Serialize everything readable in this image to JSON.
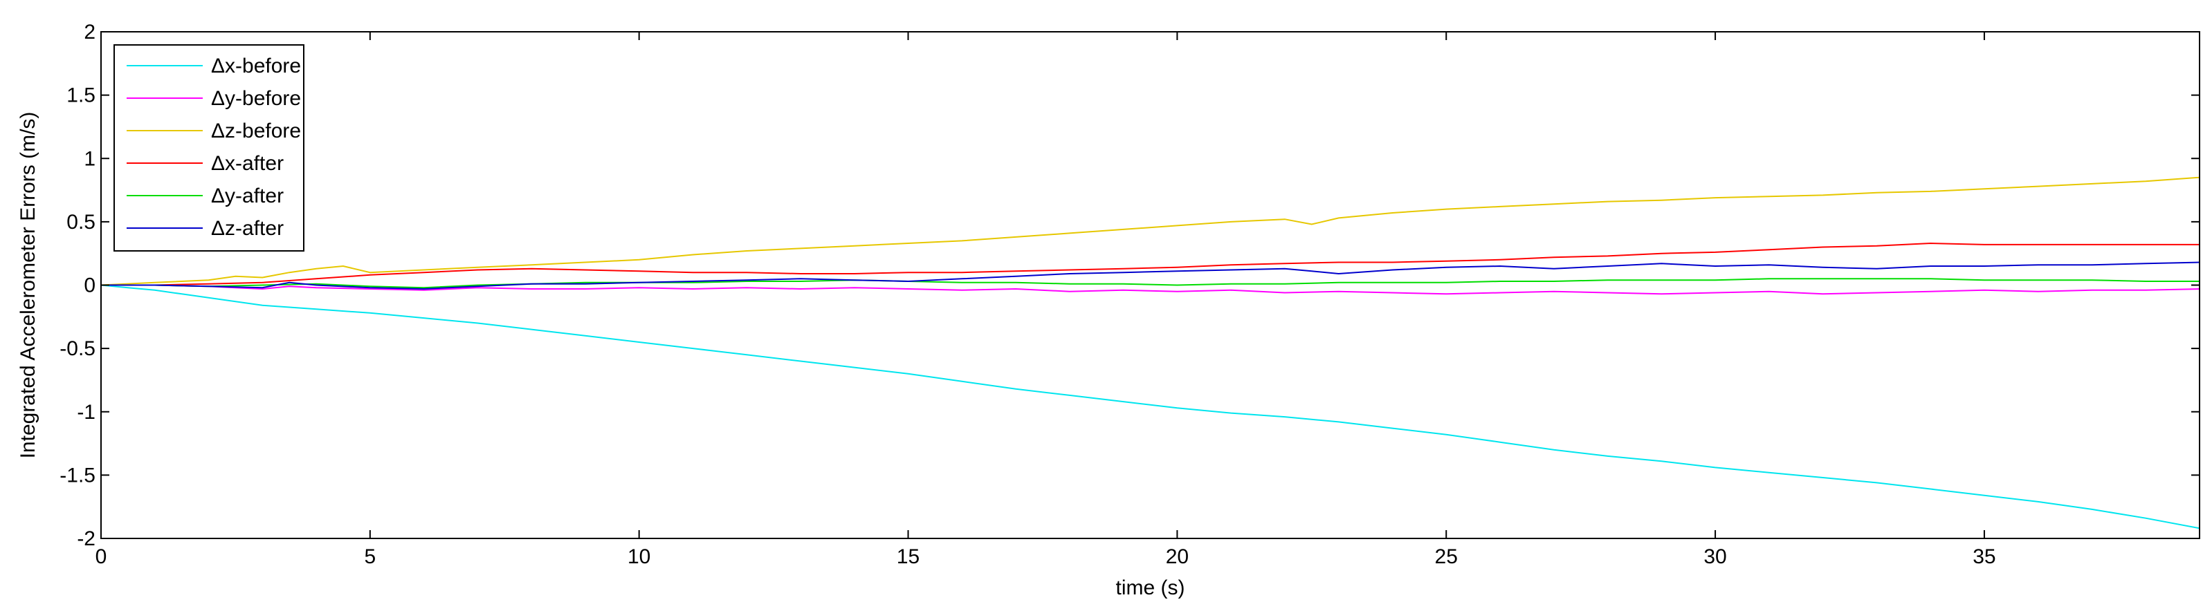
{
  "chart_data": {
    "type": "line",
    "xlabel": "time (s)",
    "ylabel": "Integrated Accelerometer Errors (m/s)",
    "xlim": [
      0,
      39
    ],
    "ylim": [
      -2,
      2
    ],
    "xticks": [
      0,
      5,
      10,
      15,
      20,
      25,
      30,
      35
    ],
    "yticks": [
      -2,
      -1.5,
      -1,
      -0.5,
      0,
      0.5,
      1,
      1.5,
      2
    ],
    "grid": false,
    "legend_position": "top-left",
    "series": [
      {
        "name": "Δx-before",
        "color": "#00e5ee",
        "x": [
          0,
          0.5,
          1,
          1.5,
          2,
          2.5,
          3,
          4,
          5,
          6,
          7,
          8,
          9,
          10,
          11,
          12,
          13,
          14,
          15,
          16,
          17,
          18,
          19,
          20,
          21,
          22,
          23,
          24,
          25,
          26,
          27,
          28,
          29,
          30,
          31,
          32,
          33,
          34,
          35,
          36,
          37,
          38,
          39
        ],
        "y": [
          0,
          -0.02,
          -0.04,
          -0.07,
          -0.1,
          -0.13,
          -0.16,
          -0.19,
          -0.22,
          -0.26,
          -0.3,
          -0.35,
          -0.4,
          -0.45,
          -0.5,
          -0.55,
          -0.6,
          -0.65,
          -0.7,
          -0.76,
          -0.82,
          -0.87,
          -0.92,
          -0.97,
          -1.01,
          -1.04,
          -1.08,
          -1.13,
          -1.18,
          -1.24,
          -1.3,
          -1.35,
          -1.39,
          -1.44,
          -1.48,
          -1.52,
          -1.56,
          -1.61,
          -1.66,
          -1.71,
          -1.77,
          -1.84,
          -1.92
        ]
      },
      {
        "name": "Δy-before",
        "color": "#ff00ff",
        "x": [
          0,
          1,
          2,
          2.5,
          3,
          3.5,
          4,
          5,
          6,
          7,
          8,
          9,
          10,
          11,
          12,
          13,
          14,
          15,
          16,
          17,
          18,
          19,
          20,
          21,
          22,
          23,
          24,
          25,
          26,
          27,
          28,
          29,
          30,
          31,
          32,
          33,
          34,
          35,
          36,
          37,
          38,
          39
        ],
        "y": [
          0,
          0,
          -0.01,
          -0.02,
          -0.03,
          -0.01,
          -0.02,
          -0.03,
          -0.04,
          -0.02,
          -0.03,
          -0.03,
          -0.02,
          -0.03,
          -0.02,
          -0.03,
          -0.02,
          -0.03,
          -0.04,
          -0.03,
          -0.05,
          -0.04,
          -0.05,
          -0.04,
          -0.06,
          -0.05,
          -0.06,
          -0.07,
          -0.06,
          -0.05,
          -0.06,
          -0.07,
          -0.06,
          -0.05,
          -0.07,
          -0.06,
          -0.05,
          -0.04,
          -0.05,
          -0.04,
          -0.04,
          -0.03
        ]
      },
      {
        "name": "Δz-before",
        "color": "#e6c700",
        "x": [
          0,
          1,
          2,
          2.5,
          3,
          3.5,
          4,
          4.5,
          5,
          6,
          7,
          8,
          9,
          10,
          11,
          12,
          13,
          14,
          15,
          16,
          17,
          18,
          19,
          20,
          21,
          22,
          22.5,
          23,
          24,
          25,
          26,
          27,
          28,
          29,
          30,
          31,
          32,
          33,
          34,
          35,
          36,
          37,
          38,
          39
        ],
        "y": [
          0,
          0.02,
          0.04,
          0.07,
          0.06,
          0.1,
          0.13,
          0.15,
          0.1,
          0.12,
          0.14,
          0.16,
          0.18,
          0.2,
          0.24,
          0.27,
          0.29,
          0.31,
          0.33,
          0.35,
          0.38,
          0.41,
          0.44,
          0.47,
          0.5,
          0.52,
          0.48,
          0.53,
          0.57,
          0.6,
          0.62,
          0.64,
          0.66,
          0.67,
          0.69,
          0.7,
          0.71,
          0.73,
          0.74,
          0.76,
          0.78,
          0.8,
          0.82,
          0.85
        ]
      },
      {
        "name": "Δx-after",
        "color": "#ff0000",
        "x": [
          0,
          1,
          2,
          3,
          4,
          5,
          6,
          7,
          8,
          9,
          10,
          11,
          12,
          13,
          14,
          15,
          16,
          17,
          18,
          19,
          20,
          21,
          22,
          23,
          24,
          25,
          26,
          27,
          28,
          29,
          30,
          31,
          32,
          33,
          34,
          35,
          36,
          37,
          38,
          39
        ],
        "y": [
          0,
          0,
          0.01,
          0.02,
          0.05,
          0.08,
          0.1,
          0.12,
          0.13,
          0.12,
          0.11,
          0.1,
          0.1,
          0.09,
          0.09,
          0.1,
          0.1,
          0.11,
          0.12,
          0.13,
          0.14,
          0.16,
          0.17,
          0.18,
          0.18,
          0.19,
          0.2,
          0.22,
          0.23,
          0.25,
          0.26,
          0.28,
          0.3,
          0.31,
          0.33,
          0.32,
          0.32,
          0.32,
          0.32,
          0.32
        ]
      },
      {
        "name": "Δy-after",
        "color": "#00dd00",
        "x": [
          0,
          1,
          2,
          3,
          4,
          5,
          6,
          7,
          8,
          9,
          10,
          11,
          12,
          13,
          14,
          15,
          16,
          17,
          18,
          19,
          20,
          21,
          22,
          23,
          24,
          25,
          26,
          27,
          28,
          29,
          30,
          31,
          32,
          33,
          34,
          35,
          36,
          37,
          38,
          39
        ],
        "y": [
          0,
          0,
          -0.01,
          0,
          0.01,
          -0.01,
          -0.02,
          0,
          0.01,
          0.02,
          0.02,
          0.02,
          0.03,
          0.03,
          0.04,
          0.03,
          0.02,
          0.02,
          0.01,
          0.01,
          0,
          0.01,
          0.01,
          0.02,
          0.02,
          0.02,
          0.03,
          0.03,
          0.04,
          0.04,
          0.04,
          0.05,
          0.05,
          0.05,
          0.05,
          0.04,
          0.04,
          0.04,
          0.03,
          0.03
        ]
      },
      {
        "name": "Δz-after",
        "color": "#0000cc",
        "x": [
          0,
          1,
          2,
          3,
          3.5,
          4,
          5,
          6,
          7,
          8,
          9,
          10,
          11,
          12,
          13,
          14,
          15,
          16,
          17,
          18,
          19,
          20,
          21,
          22,
          22.5,
          23,
          24,
          25,
          26,
          27,
          28,
          29,
          30,
          31,
          32,
          33,
          34,
          35,
          36,
          37,
          38,
          39
        ],
        "y": [
          0,
          0,
          -0.01,
          -0.02,
          0.02,
          0,
          -0.02,
          -0.03,
          -0.01,
          0.01,
          0.01,
          0.02,
          0.03,
          0.04,
          0.05,
          0.04,
          0.03,
          0.05,
          0.07,
          0.09,
          0.1,
          0.11,
          0.12,
          0.13,
          0.11,
          0.09,
          0.12,
          0.14,
          0.15,
          0.13,
          0.15,
          0.17,
          0.15,
          0.16,
          0.14,
          0.13,
          0.15,
          0.15,
          0.16,
          0.16,
          0.17,
          0.18
        ]
      }
    ]
  }
}
